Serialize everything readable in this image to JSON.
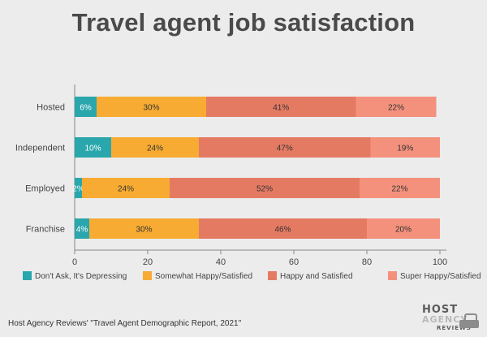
{
  "title": "Travel agent job satisfaction",
  "source": "Host Agency Reviews' \"Travel Agent Demographic Report, 2021\"",
  "logo": {
    "line1": "HOST",
    "line2": "AGENCY",
    "line3": "REVIEWS"
  },
  "colors": {
    "teal": "#2aa6ad",
    "orange": "#f7ab32",
    "salmon": "#e57a63",
    "lightSalmon": "#f4917d",
    "axis": "#888888",
    "text": "#4a4a4a"
  },
  "chart_data": {
    "type": "bar",
    "orientation": "horizontal",
    "stacked": true,
    "categories": [
      "Hosted",
      "Independent",
      "Employed",
      "Franchise"
    ],
    "series": [
      {
        "name": "Don't Ask, It's Depressing",
        "values": [
          6,
          10,
          2,
          4
        ],
        "labels": [
          "6%",
          "10%",
          "2%",
          "4%"
        ]
      },
      {
        "name": "Somewhat Happy/Satisfied",
        "values": [
          30,
          24,
          24,
          30
        ],
        "labels": [
          "30%",
          "24%",
          "24%",
          "30%"
        ]
      },
      {
        "name": "Happy and Satisfied",
        "values": [
          41,
          47,
          52,
          46
        ],
        "labels": [
          "41%",
          "47%",
          "52%",
          "46%"
        ]
      },
      {
        "name": "Super Happy/Satisfied",
        "values": [
          22,
          19,
          22,
          20
        ],
        "labels": [
          "22%",
          "19%",
          "22%",
          "20%"
        ]
      }
    ],
    "xlim": [
      0,
      100
    ],
    "xticks": [
      0,
      20,
      40,
      60,
      80,
      100
    ],
    "xtick_labels": [
      "0",
      "20",
      "40",
      "60",
      "80",
      "100"
    ],
    "legend_position": "bottom",
    "grid": false
  }
}
